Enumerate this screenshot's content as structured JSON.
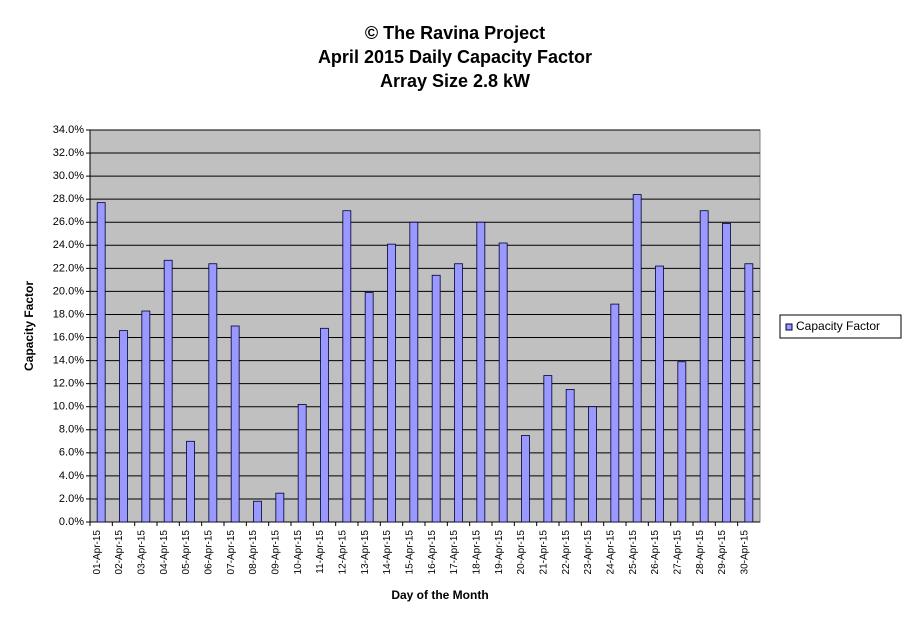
{
  "chart_data": {
    "type": "bar",
    "title_lines": [
      "© The Ravina Project",
      "April 2015 Daily Capacity  Factor",
      "Array Size 2.8 kW"
    ],
    "x_label": "Day of the Month",
    "y_label": "Capacity Factor",
    "categories": [
      "01-Apr-15",
      "02-Apr-15",
      "03-Apr-15",
      "04-Apr-15",
      "05-Apr-15",
      "06-Apr-15",
      "07-Apr-15",
      "08-Apr-15",
      "09-Apr-15",
      "10-Apr-15",
      "11-Apr-15",
      "12-Apr-15",
      "13-Apr-15",
      "14-Apr-15",
      "15-Apr-15",
      "16-Apr-15",
      "17-Apr-15",
      "18-Apr-15",
      "19-Apr-15",
      "20-Apr-15",
      "21-Apr-15",
      "22-Apr-15",
      "23-Apr-15",
      "24-Apr-15",
      "25-Apr-15",
      "26-Apr-15",
      "27-Apr-15",
      "28-Apr-15",
      "29-Apr-15",
      "30-Apr-15"
    ],
    "series": [
      {
        "name": "Capacity  Factor",
        "color": "#9999ff",
        "values": [
          27.7,
          16.6,
          18.3,
          22.7,
          7.0,
          22.4,
          17.0,
          1.8,
          2.5,
          10.2,
          16.8,
          27.0,
          19.9,
          24.1,
          26.0,
          21.4,
          22.4,
          26.0,
          24.2,
          7.5,
          12.7,
          11.5,
          10.0,
          18.9,
          28.4,
          22.2,
          13.9,
          27.0,
          25.9,
          22.4
        ]
      }
    ],
    "ylim": [
      0,
      34
    ],
    "yticks": [
      {
        "value": 0,
        "label": "0.0%"
      },
      {
        "value": 2,
        "label": "2.0%"
      },
      {
        "value": 4,
        "label": "4.0%"
      },
      {
        "value": 6,
        "label": "6.0%"
      },
      {
        "value": 8,
        "label": "8.0%"
      },
      {
        "value": 10,
        "label": "10.0%"
      },
      {
        "value": 12,
        "label": "12.0%"
      },
      {
        "value": 14,
        "label": "14.0%"
      },
      {
        "value": 16,
        "label": "16.0%"
      },
      {
        "value": 18,
        "label": "18.0%"
      },
      {
        "value": 20,
        "label": "20.0%"
      },
      {
        "value": 22,
        "label": "22.0%"
      },
      {
        "value": 24,
        "label": "24.0%"
      },
      {
        "value": 26,
        "label": "26.0%"
      },
      {
        "value": 28,
        "label": "28.0%"
      },
      {
        "value": 30,
        "label": "30.0%"
      },
      {
        "value": 32,
        "label": "32.0%"
      },
      {
        "value": 34,
        "label": "34.0%"
      }
    ],
    "grid": true,
    "legend": "right"
  }
}
